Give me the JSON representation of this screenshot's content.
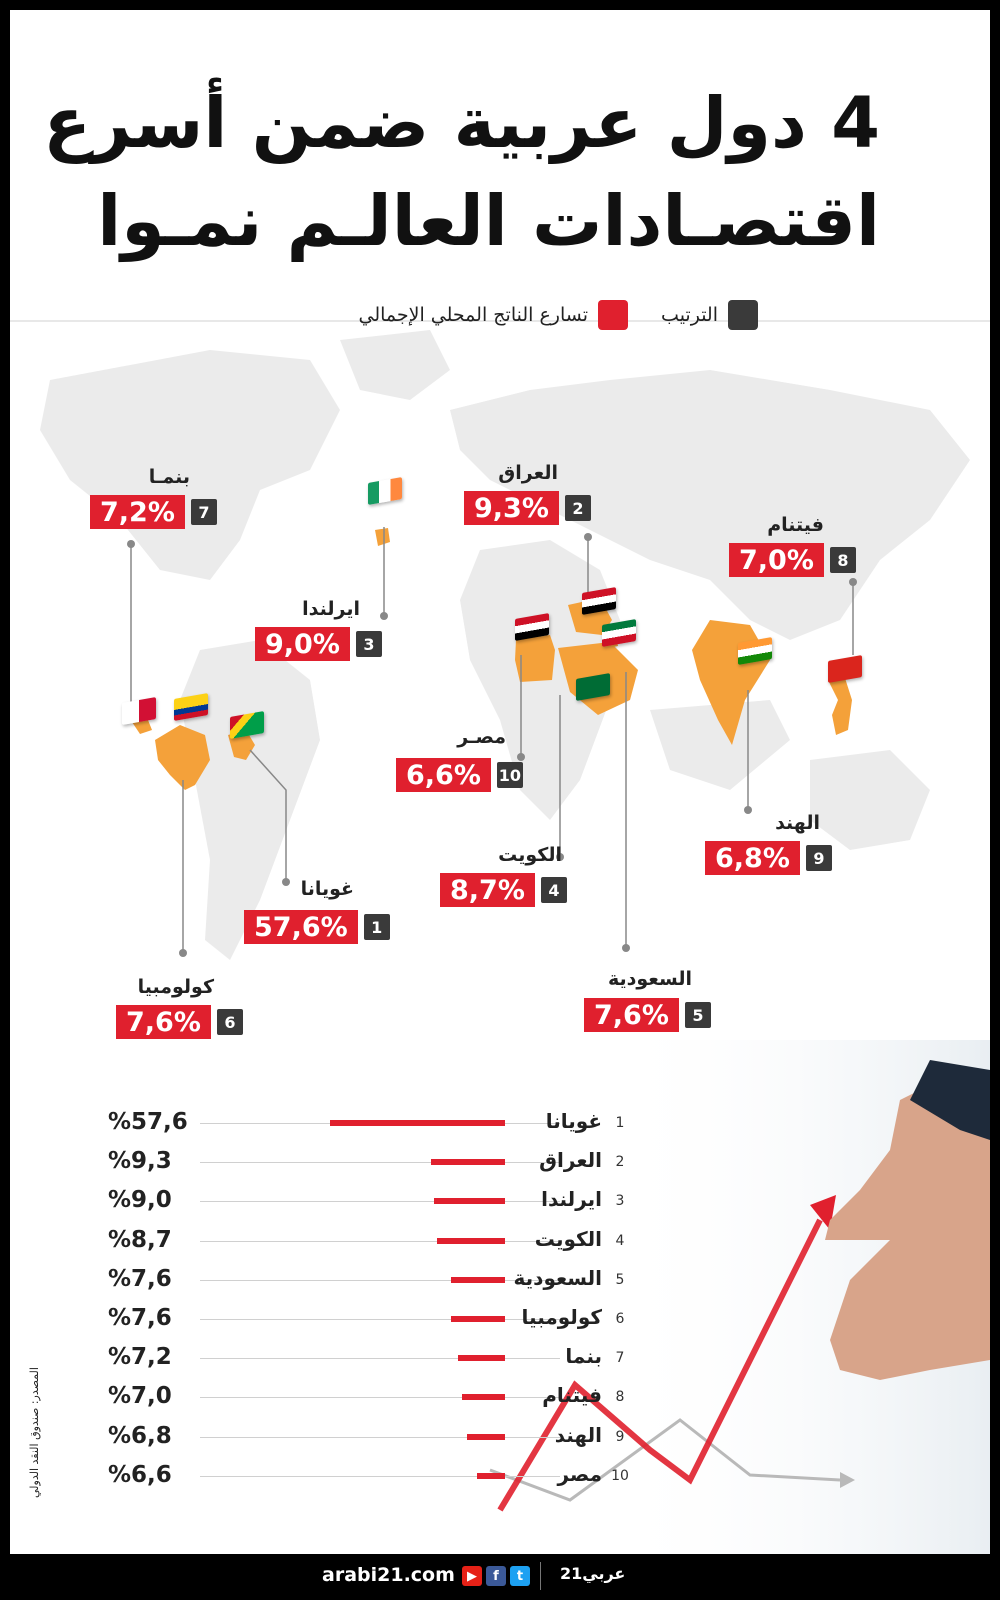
{
  "title_line1": "4 دول عربية ضمن أسرع",
  "title_line2": "اقتصـادات العالـم نمـوا",
  "legend": {
    "rank_label": "الترتيب",
    "growth_label": "تسارع الناتج المحلي الإجمالي",
    "rank_color": "#3a3a3a",
    "growth_color": "#e0202e"
  },
  "map_labels": [
    {
      "rank": "7",
      "name": "بنمـا",
      "value": "7,2%"
    },
    {
      "rank": "2",
      "name": "العراق",
      "value": "9,3%"
    },
    {
      "rank": "8",
      "name": "فيتنام",
      "value": "7,0%"
    },
    {
      "rank": "3",
      "name": "ايرلندا",
      "value": "9,0%"
    },
    {
      "rank": "10",
      "name": "مصـر",
      "value": "6,6%"
    },
    {
      "rank": "9",
      "name": "الهند",
      "value": "6,8%"
    },
    {
      "rank": "4",
      "name": "الكويت",
      "value": "8,7%"
    },
    {
      "rank": "1",
      "name": "غويانا",
      "value": "57,6%"
    },
    {
      "rank": "6",
      "name": "كولومبيا",
      "value": "7,6%"
    },
    {
      "rank": "5",
      "name": "السعودية",
      "value": "7,6%"
    }
  ],
  "chart_data": {
    "type": "bar",
    "orientation": "horizontal",
    "title": "4 دول عربية ضمن أسرع اقتصـادات العالـم نمـوا",
    "categories": [
      "غويانا",
      "العراق",
      "ايرلندا",
      "الكويت",
      "السعودية",
      "كولومبيا",
      "بنما",
      "فيتنام",
      "الهند",
      "مصر"
    ],
    "ranks": [
      "1",
      "2",
      "3",
      "4",
      "5",
      "6",
      "7",
      "8",
      "9",
      "10"
    ],
    "values": [
      57.6,
      9.3,
      9.0,
      8.7,
      7.6,
      7.6,
      7.2,
      7.0,
      6.8,
      6.6
    ],
    "value_labels": [
      "%57,6",
      "%9,3",
      "%9,0",
      "%8,7",
      "%7,6",
      "%7,6",
      "%7,2",
      "%7,0",
      "%6,8",
      "%6,6"
    ],
    "bar_color": "#e0202e"
  },
  "source": "المصدر: صندوق النقد الدولي",
  "footer": {
    "url": "arabi21.com",
    "brand": "عربي21",
    "youtube_icon": "youtube-icon",
    "facebook_icon": "facebook-icon",
    "twitter_icon": "twitter-icon"
  }
}
